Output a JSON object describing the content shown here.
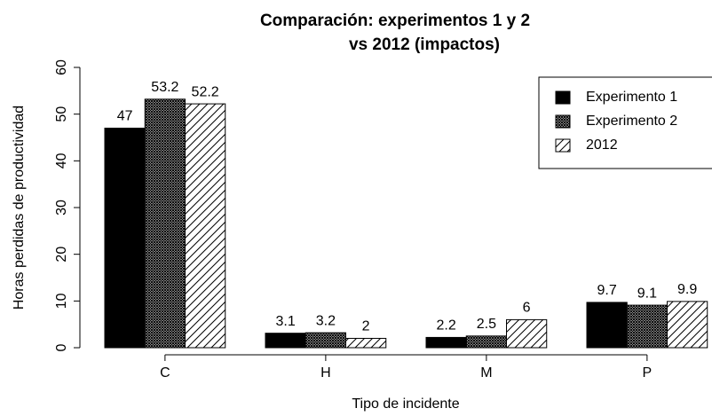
{
  "chart_data": {
    "type": "bar",
    "title": [
      "Comparación: experimentos 1 y 2",
      "vs 2012 (impactos)"
    ],
    "x_label": "Tipo de incidente",
    "y_label": "Horas perdidas de productividad",
    "categories": [
      "C",
      "H",
      "M",
      "P"
    ],
    "series": [
      {
        "name": "Experimento 1",
        "color": "#000000",
        "pattern": "solid",
        "values": [
          47,
          3.1,
          2.2,
          9.7
        ]
      },
      {
        "name": "Experimento 2",
        "color": "#444444",
        "pattern": "crosshatch",
        "values": [
          53.2,
          3.2,
          2.5,
          9.1
        ]
      },
      {
        "name": "2012",
        "color": "#000000",
        "pattern": "diagonal",
        "values": [
          52.2,
          2,
          6,
          9.9
        ]
      }
    ],
    "ylim": [
      0,
      60
    ],
    "yticks": [
      0,
      10,
      20,
      30,
      40,
      50,
      60
    ],
    "legend": "topright"
  }
}
